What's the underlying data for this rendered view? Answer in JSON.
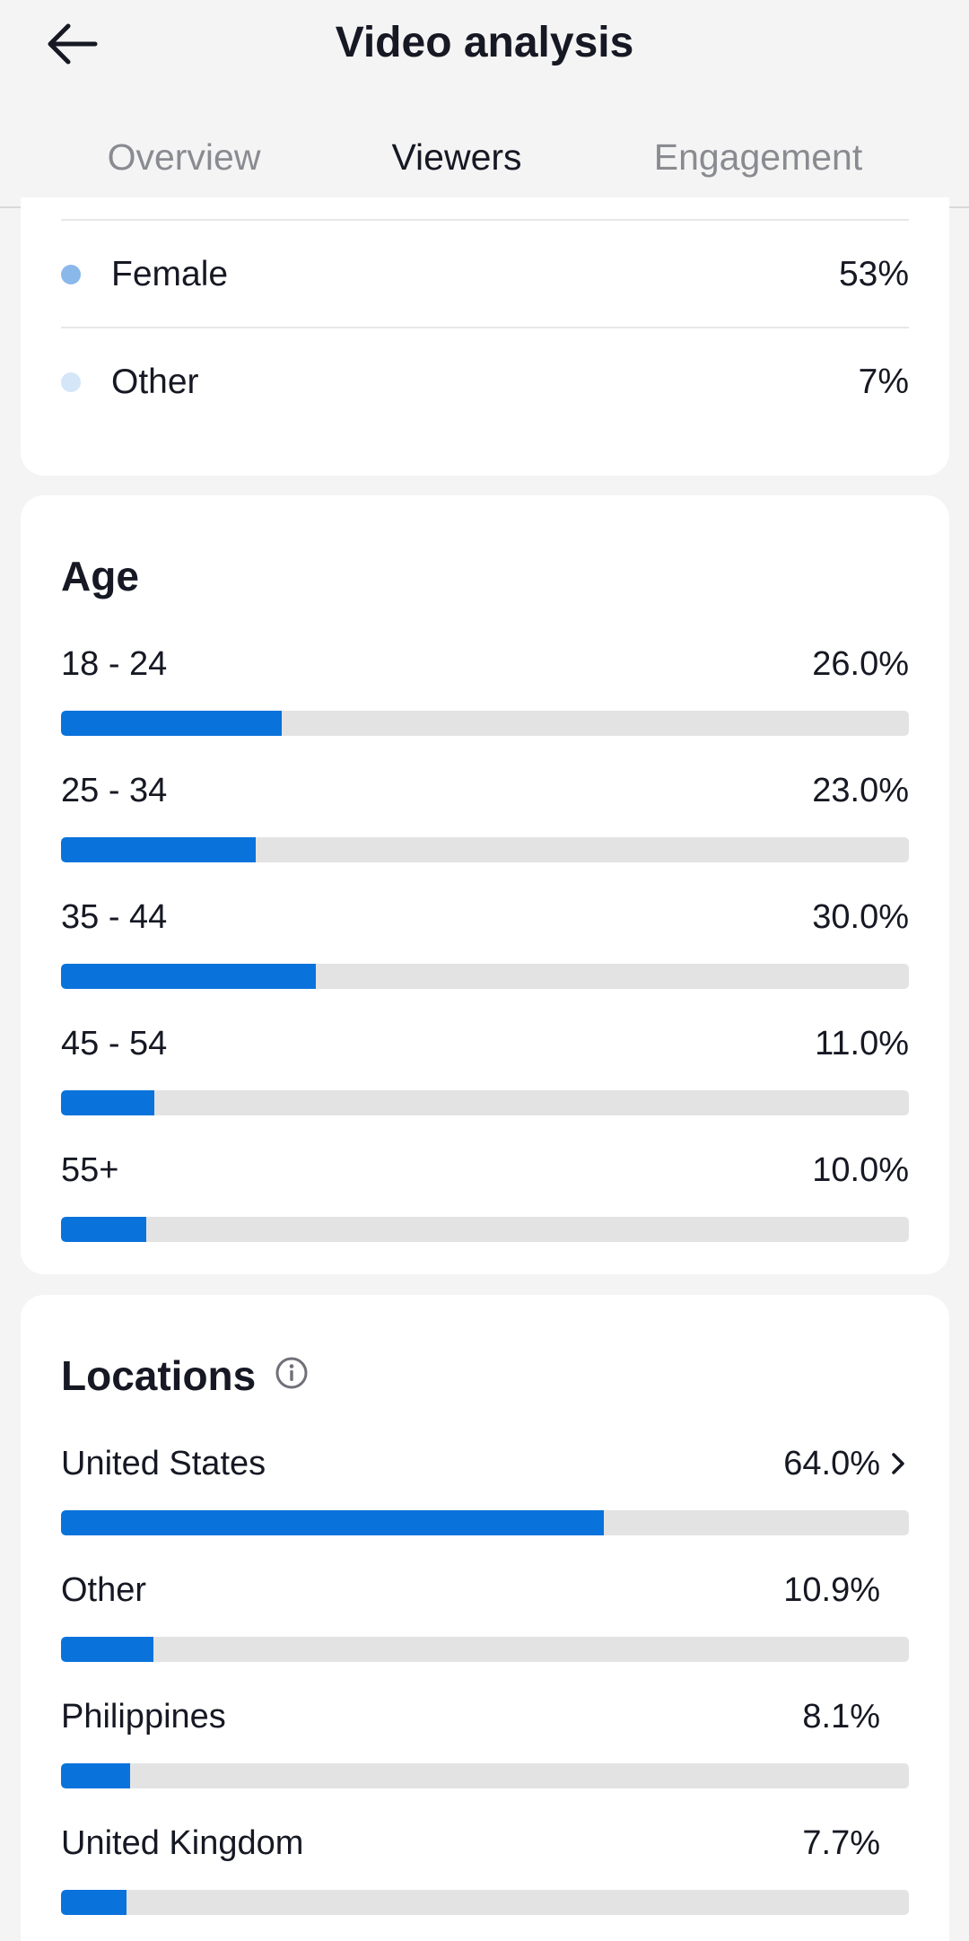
{
  "header": {
    "title": "Video analysis",
    "tabs": [
      "Overview",
      "Viewers",
      "Engagement"
    ],
    "active_tab": "Viewers"
  },
  "gender": {
    "items": [
      {
        "label": "Female",
        "value": "53%",
        "color": "#8ab8ea"
      },
      {
        "label": "Other",
        "value": "7%",
        "color": "#d4e6f8"
      }
    ]
  },
  "age": {
    "title": "Age",
    "items": [
      {
        "label": "18 - 24",
        "value": "26.0%",
        "percent": 26.0
      },
      {
        "label": "25 - 34",
        "value": "23.0%",
        "percent": 23.0
      },
      {
        "label": "35 - 44",
        "value": "30.0%",
        "percent": 30.0
      },
      {
        "label": "45 - 54",
        "value": "11.0%",
        "percent": 11.0
      },
      {
        "label": "55+",
        "value": "10.0%",
        "percent": 10.0
      }
    ]
  },
  "locations": {
    "title": "Locations",
    "items": [
      {
        "label": "United States",
        "value": "64.0%",
        "percent": 64.0
      },
      {
        "label": "Other",
        "value": "10.9%",
        "percent": 10.9
      },
      {
        "label": "Philippines",
        "value": "8.1%",
        "percent": 8.1
      },
      {
        "label": "United Kingdom",
        "value": "7.7%",
        "percent": 7.7
      }
    ]
  },
  "colors": {
    "bar_fill": "#0a72db",
    "bar_track": "#e3e3e3"
  }
}
